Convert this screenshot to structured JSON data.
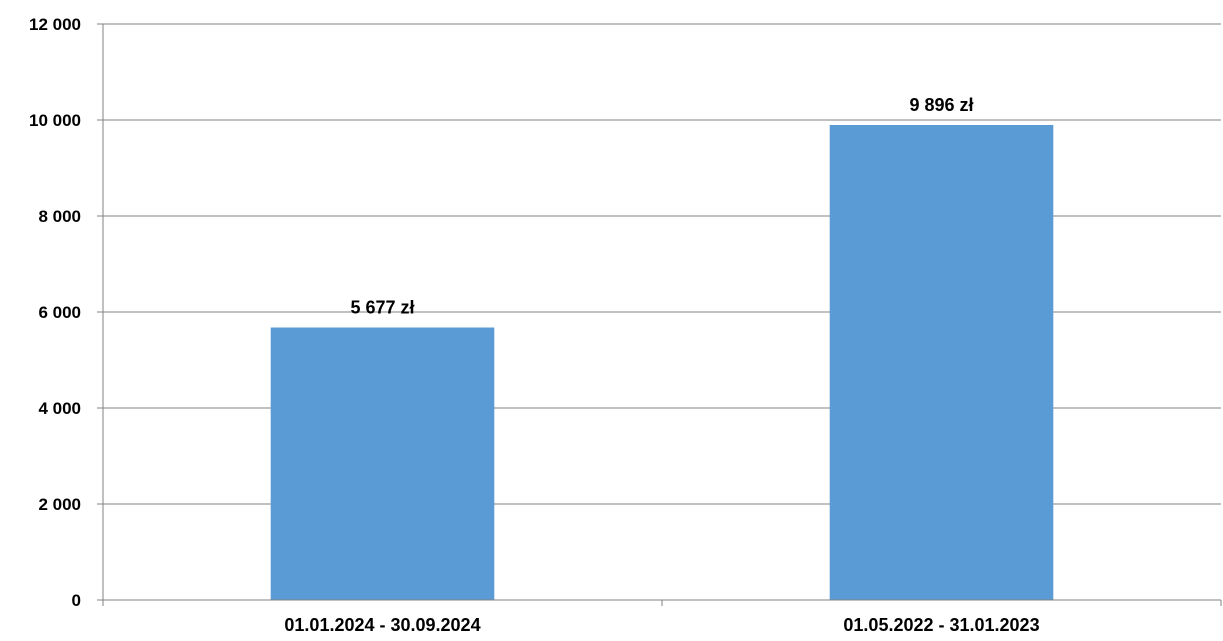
{
  "chart_data": {
    "type": "bar",
    "title": "",
    "xlabel": "",
    "ylabel": "",
    "categories": [
      "01.01.2024 - 30.09.2024",
      "01.05.2022 - 31.01.2023"
    ],
    "values": [
      5677,
      9896
    ],
    "data_labels": [
      "5 677 zł",
      "9 896 zł"
    ],
    "ylim": [
      0,
      12000
    ],
    "y_ticks": [
      0,
      2000,
      4000,
      6000,
      8000,
      10000,
      12000
    ],
    "y_tick_labels": [
      "0",
      "2 000",
      "4 000",
      "6 000",
      "8 000",
      "10 000",
      "12 000"
    ],
    "grid": true,
    "legend": "none",
    "bar_color": "#5b9bd5",
    "grid_color": "#c0c0c0",
    "axis_color": "#808080"
  }
}
